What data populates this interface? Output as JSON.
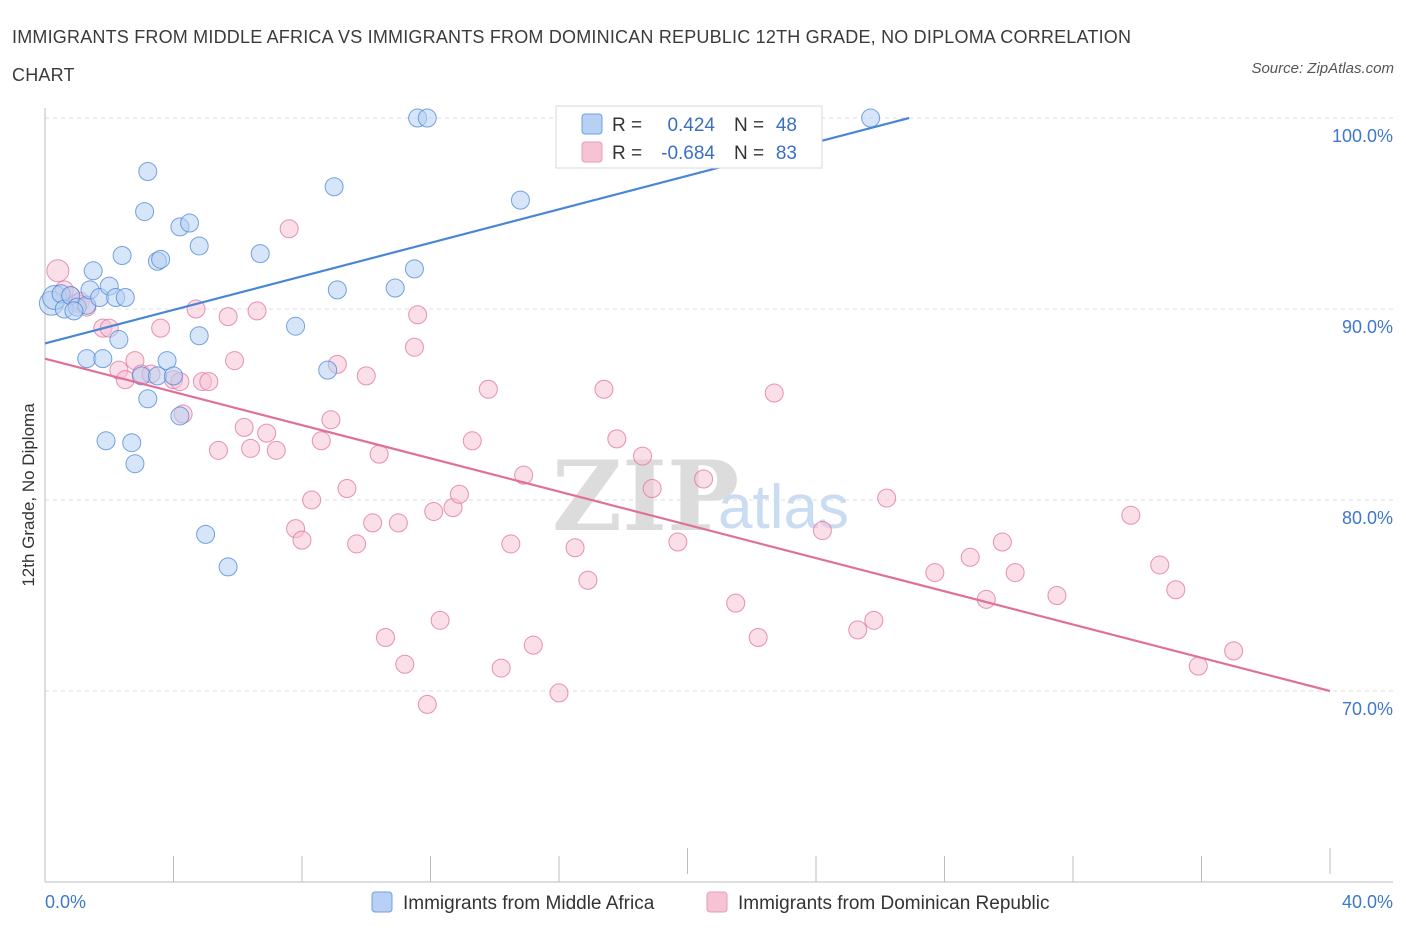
{
  "title": "IMMIGRANTS FROM MIDDLE AFRICA VS IMMIGRANTS FROM DOMINICAN REPUBLIC 12TH GRADE, NO DIPLOMA CORRELATION CHART",
  "source": "Source: ZipAtlas.com",
  "watermark": {
    "zip": "ZIP",
    "atlas": "atlas"
  },
  "colors": {
    "blue": "#4a86d6",
    "blue_fill": "#b7d0f3",
    "pink": "#e0709a",
    "pink_fill": "#f6c3d5",
    "tick_text": "#3f79c9"
  },
  "stats": {
    "r_label": "R =",
    "n_label": "N =",
    "blue": {
      "r": "0.424",
      "n": "48"
    },
    "pink": {
      "r": "-0.684",
      "n": "83"
    }
  },
  "legend": {
    "blue": "Immigrants from Middle Africa",
    "pink": "Immigrants from Dominican Republic"
  },
  "chart_data": {
    "type": "scatter",
    "title": "IMMIGRANTS FROM MIDDLE AFRICA VS IMMIGRANTS FROM DOMINICAN REPUBLIC 12TH GRADE, NO DIPLOMA CORRELATION CHART",
    "xlabel": "",
    "ylabel": "12th Grade, No Diploma",
    "xlim": [
      0,
      40
    ],
    "ylim": [
      60,
      100
    ],
    "x_tick_labels": {
      "left": "0.0%",
      "right": "40.0%"
    },
    "y_ticks": [
      {
        "value": 100,
        "label": "100.0%"
      },
      {
        "value": 90,
        "label": "90.0%"
      },
      {
        "value": 80,
        "label": "80.0%"
      },
      {
        "value": 70,
        "label": "70.0%"
      }
    ],
    "grid": true,
    "legend_placement": "bottom",
    "series": [
      {
        "name": "Immigrants from Middle Africa",
        "color": "#4a86d6",
        "trend": {
          "x": [
            0,
            26.9
          ],
          "y": [
            88.2,
            100.0
          ]
        },
        "points": [
          [
            0.2,
            90.3
          ],
          [
            0.3,
            90.6
          ],
          [
            0.5,
            90.8
          ],
          [
            0.6,
            90.0
          ],
          [
            0.8,
            90.7
          ],
          [
            1.0,
            90.1
          ],
          [
            1.3,
            90.2
          ],
          [
            1.4,
            91.0
          ],
          [
            1.5,
            92.0
          ],
          [
            1.7,
            90.6
          ],
          [
            2.0,
            91.2
          ],
          [
            2.2,
            90.6
          ],
          [
            2.5,
            90.6
          ],
          [
            2.4,
            92.8
          ],
          [
            1.3,
            87.4
          ],
          [
            1.8,
            87.4
          ],
          [
            2.3,
            88.4
          ],
          [
            3.0,
            86.5
          ],
          [
            3.5,
            86.5
          ],
          [
            3.8,
            87.3
          ],
          [
            4.2,
            84.4
          ],
          [
            3.2,
            85.3
          ],
          [
            1.9,
            83.1
          ],
          [
            2.7,
            83.0
          ],
          [
            2.8,
            81.9
          ],
          [
            3.1,
            95.1
          ],
          [
            3.2,
            97.2
          ],
          [
            3.5,
            92.5
          ],
          [
            3.6,
            92.6
          ],
          [
            4.2,
            94.3
          ],
          [
            4.5,
            94.5
          ],
          [
            4.8,
            93.3
          ],
          [
            4.8,
            88.6
          ],
          [
            5.0,
            78.2
          ],
          [
            5.7,
            76.5
          ],
          [
            6.7,
            92.9
          ],
          [
            7.8,
            89.1
          ],
          [
            8.8,
            86.8
          ],
          [
            9.0,
            96.4
          ],
          [
            9.1,
            91.0
          ],
          [
            10.9,
            91.1
          ],
          [
            11.5,
            92.1
          ],
          [
            11.6,
            100.0
          ],
          [
            11.9,
            100.0
          ],
          [
            14.8,
            95.7
          ],
          [
            25.7,
            100.0
          ],
          [
            4.0,
            86.5
          ],
          [
            0.9,
            89.9
          ]
        ]
      },
      {
        "name": "Immigrants from Dominican Republic",
        "color": "#e0709a",
        "trend": {
          "x": [
            0,
            40
          ],
          "y": [
            87.4,
            70.0
          ]
        },
        "points": [
          [
            0.4,
            92.0
          ],
          [
            0.6,
            91.0
          ],
          [
            0.8,
            90.7
          ],
          [
            1.0,
            90.3
          ],
          [
            1.1,
            90.4
          ],
          [
            1.3,
            90.1
          ],
          [
            1.8,
            89.0
          ],
          [
            2.0,
            89.0
          ],
          [
            2.3,
            86.8
          ],
          [
            2.5,
            86.3
          ],
          [
            2.8,
            87.3
          ],
          [
            3.0,
            86.6
          ],
          [
            3.3,
            86.6
          ],
          [
            3.6,
            89.0
          ],
          [
            4.0,
            86.3
          ],
          [
            4.2,
            86.2
          ],
          [
            4.3,
            84.5
          ],
          [
            4.7,
            90.0
          ],
          [
            4.9,
            86.2
          ],
          [
            5.1,
            86.2
          ],
          [
            5.4,
            82.6
          ],
          [
            5.7,
            89.6
          ],
          [
            5.9,
            87.3
          ],
          [
            6.2,
            83.8
          ],
          [
            6.4,
            82.7
          ],
          [
            6.6,
            89.9
          ],
          [
            6.9,
            83.5
          ],
          [
            7.2,
            82.6
          ],
          [
            7.6,
            94.2
          ],
          [
            7.8,
            78.5
          ],
          [
            8.0,
            77.9
          ],
          [
            8.3,
            80.0
          ],
          [
            8.6,
            83.1
          ],
          [
            8.9,
            84.2
          ],
          [
            9.1,
            87.1
          ],
          [
            9.4,
            80.6
          ],
          [
            9.7,
            77.7
          ],
          [
            10.0,
            86.5
          ],
          [
            10.2,
            78.8
          ],
          [
            10.4,
            82.4
          ],
          [
            10.6,
            72.8
          ],
          [
            11.0,
            78.8
          ],
          [
            11.2,
            71.4
          ],
          [
            11.5,
            88.0
          ],
          [
            11.6,
            89.7
          ],
          [
            11.9,
            69.3
          ],
          [
            12.1,
            79.4
          ],
          [
            12.3,
            73.7
          ],
          [
            12.7,
            79.6
          ],
          [
            12.9,
            80.3
          ],
          [
            13.3,
            83.1
          ],
          [
            13.8,
            85.8
          ],
          [
            14.2,
            71.2
          ],
          [
            14.5,
            77.7
          ],
          [
            14.9,
            81.3
          ],
          [
            15.2,
            72.4
          ],
          [
            16.0,
            69.9
          ],
          [
            16.5,
            77.5
          ],
          [
            16.9,
            75.8
          ],
          [
            17.4,
            85.8
          ],
          [
            17.8,
            83.2
          ],
          [
            18.6,
            82.3
          ],
          [
            18.9,
            80.6
          ],
          [
            19.7,
            77.8
          ],
          [
            20.5,
            81.1
          ],
          [
            21.5,
            74.6
          ],
          [
            22.2,
            72.8
          ],
          [
            22.7,
            85.6
          ],
          [
            24.2,
            78.4
          ],
          [
            25.3,
            73.2
          ],
          [
            25.8,
            73.7
          ],
          [
            26.2,
            80.1
          ],
          [
            27.7,
            76.2
          ],
          [
            28.8,
            77.0
          ],
          [
            29.3,
            74.8
          ],
          [
            29.8,
            77.8
          ],
          [
            30.2,
            76.2
          ],
          [
            31.5,
            75.0
          ],
          [
            33.8,
            79.2
          ],
          [
            34.7,
            76.6
          ],
          [
            35.2,
            75.3
          ],
          [
            35.9,
            71.3
          ],
          [
            37.0,
            72.1
          ]
        ]
      }
    ]
  }
}
